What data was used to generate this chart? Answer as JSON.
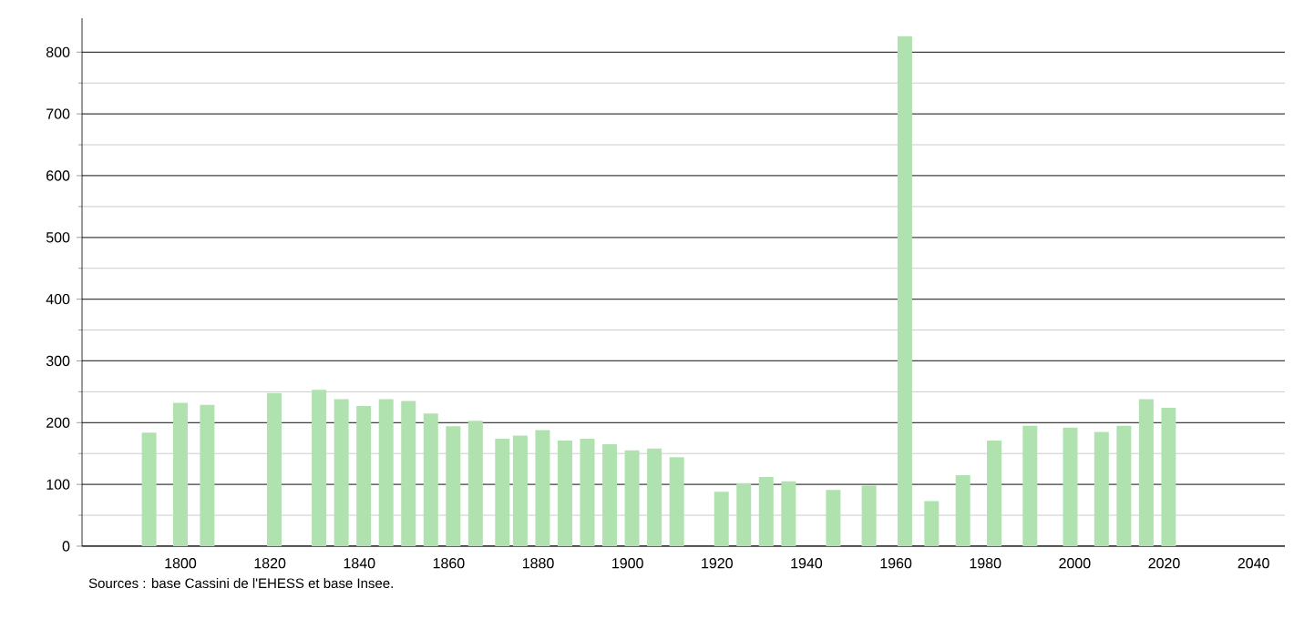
{
  "chart_data": {
    "type": "bar",
    "x": [
      1793,
      1800,
      1806,
      1821,
      1831,
      1836,
      1841,
      1846,
      1851,
      1856,
      1861,
      1866,
      1872,
      1876,
      1881,
      1886,
      1891,
      1896,
      1901,
      1906,
      1911,
      1921,
      1926,
      1931,
      1936,
      1946,
      1954,
      1962,
      1968,
      1975,
      1982,
      1990,
      1999,
      2006,
      2011,
      2016,
      2021
    ],
    "values": [
      184,
      232,
      229,
      248,
      253,
      238,
      227,
      238,
      235,
      215,
      194,
      203,
      174,
      179,
      188,
      171,
      174,
      165,
      155,
      158,
      144,
      88,
      102,
      112,
      105,
      91,
      98,
      826,
      73,
      115,
      171,
      195,
      192,
      185,
      195,
      238,
      224
    ],
    "color": "#b0e2b0",
    "xlim": [
      1778,
      2047
    ],
    "ylim": [
      0,
      855
    ],
    "xticks": [
      1800,
      1820,
      1840,
      1860,
      1880,
      1900,
      1920,
      1940,
      1960,
      1980,
      2000,
      2020,
      2040
    ],
    "yticks": [
      0,
      100,
      200,
      300,
      400,
      500,
      600,
      700,
      800
    ],
    "grid": "y",
    "annotations": [
      "Sources : base Cassini de l'EHESS et base Insee."
    ]
  }
}
